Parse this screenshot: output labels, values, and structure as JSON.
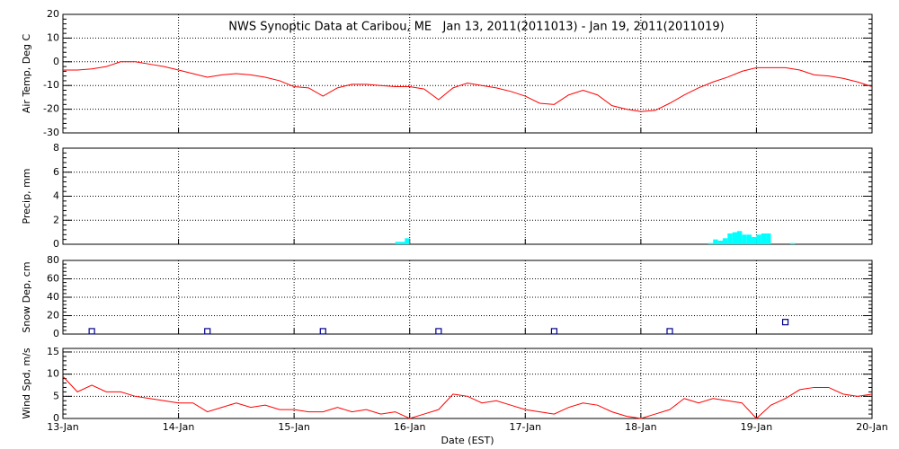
{
  "chart_data": [
    {
      "type": "line",
      "title": "NWS Synoptic Data at Caribou, ME   Jan 13, 2011(2011013) - Jan 19, 2011(2011019)",
      "ylabel": "Air Temp, Deg C",
      "color": "#ff0000",
      "ylim": [
        -30,
        20
      ],
      "yticks": [
        -30,
        -20,
        -10,
        0,
        10,
        20
      ],
      "grid": true,
      "x": [
        0,
        0.125,
        0.25,
        0.375,
        0.5,
        0.625,
        0.75,
        0.875,
        1,
        1.125,
        1.25,
        1.375,
        1.5,
        1.625,
        1.75,
        1.875,
        2,
        2.125,
        2.25,
        2.375,
        2.5,
        2.625,
        2.75,
        2.875,
        3,
        3.125,
        3.25,
        3.375,
        3.5,
        3.625,
        3.75,
        3.875,
        4,
        4.125,
        4.25,
        4.375,
        4.5,
        4.625,
        4.75,
        4.875,
        5,
        5.125,
        5.25,
        5.375,
        5.5,
        5.625,
        5.75,
        5.875,
        6,
        6.125,
        6.25,
        6.375,
        6.5,
        6.625,
        6.75,
        6.875,
        7
      ],
      "values": [
        -3.5,
        -3.5,
        -3,
        -2,
        0,
        0,
        -1,
        -2,
        -3.5,
        -5,
        -6.5,
        -5.5,
        -5,
        -5.5,
        -6.5,
        -8,
        -10.5,
        -11,
        -14.5,
        -11,
        -9.5,
        -9.5,
        -10,
        -10.5,
        -10.5,
        -11.5,
        -16,
        -11,
        -9,
        -10,
        -11,
        -12.5,
        -14.5,
        -17.5,
        -18,
        -14,
        -12,
        -14,
        -18.5,
        -20,
        -21,
        -20.5,
        -17.5,
        -14,
        -11,
        -8.5,
        -6.5,
        -4,
        -2.5,
        -2.5,
        -2.5,
        -3.5,
        -5.5,
        -6,
        -7,
        -8.5,
        -10.5
      ]
    },
    {
      "type": "bar",
      "ylabel": "Precip, mm",
      "color": "#00ffff",
      "ylim": [
        0,
        8
      ],
      "yticks": [
        0,
        2,
        4,
        6,
        8
      ],
      "grid": true,
      "x": [
        2.875,
        2.917,
        2.958,
        5.583,
        5.625,
        5.667,
        5.708,
        5.75,
        5.792,
        5.833,
        5.875,
        5.917,
        5.958,
        6,
        6.042,
        6.083,
        6.292
      ],
      "values": [
        0.2,
        0.2,
        0.5,
        0.1,
        0.4,
        0.3,
        0.5,
        0.9,
        1,
        1.1,
        0.8,
        0.8,
        0.6,
        0.8,
        0.9,
        0.9,
        0.1
      ]
    },
    {
      "type": "scatter",
      "ylabel": "Snow Dep, cm",
      "color": "#00008b",
      "ylim": [
        0,
        80
      ],
      "yticks": [
        0,
        20,
        40,
        60,
        80
      ],
      "grid": true,
      "x": [
        0.25,
        1.25,
        2.25,
        3.25,
        4.25,
        5.25,
        6.25
      ],
      "values": [
        3,
        3,
        3,
        3,
        3,
        3,
        13
      ]
    },
    {
      "type": "line",
      "ylabel": "Wind Spd, m/s",
      "color": "#ff0000",
      "ylim": [
        0,
        15.8
      ],
      "yticks": [
        0,
        5,
        10,
        15
      ],
      "grid": true,
      "xlabel": "Date (EST)",
      "xlim": [
        0,
        7
      ],
      "xticks": [
        {
          "value": 0,
          "label": "13-Jan"
        },
        {
          "value": 1,
          "label": "14-Jan"
        },
        {
          "value": 2,
          "label": "15-Jan"
        },
        {
          "value": 3,
          "label": "16-Jan"
        },
        {
          "value": 4,
          "label": "17-Jan"
        },
        {
          "value": 5,
          "label": "18-Jan"
        },
        {
          "value": 6,
          "label": "19-Jan"
        },
        {
          "value": 7,
          "label": "20-Jan"
        }
      ],
      "x": [
        0,
        0.125,
        0.25,
        0.375,
        0.5,
        0.625,
        0.75,
        0.875,
        1,
        1.125,
        1.25,
        1.375,
        1.5,
        1.625,
        1.75,
        1.875,
        2,
        2.125,
        2.25,
        2.375,
        2.5,
        2.625,
        2.75,
        2.875,
        3,
        3.125,
        3.25,
        3.375,
        3.5,
        3.625,
        3.75,
        3.875,
        4,
        4.125,
        4.25,
        4.375,
        4.5,
        4.625,
        4.75,
        4.875,
        5,
        5.125,
        5.25,
        5.375,
        5.5,
        5.625,
        5.75,
        5.875,
        6,
        6.125,
        6.25,
        6.375,
        6.5,
        6.625,
        6.75,
        6.875,
        7
      ],
      "values": [
        9.5,
        6,
        7.5,
        6,
        6,
        5,
        4.5,
        4,
        3.5,
        3.5,
        1.5,
        2.5,
        3.5,
        2.5,
        3,
        2,
        2,
        1.5,
        1.5,
        2.5,
        1.5,
        2,
        1,
        1.5,
        0,
        1,
        2,
        5.5,
        5,
        3.5,
        4,
        3,
        2,
        1.5,
        1,
        2.5,
        3.5,
        3,
        1.5,
        0.5,
        0,
        1,
        2,
        4.5,
        3.5,
        4.5,
        4,
        3.5,
        0,
        3,
        4.5,
        6.5,
        7,
        7,
        5.5,
        5,
        5.5
      ]
    }
  ]
}
